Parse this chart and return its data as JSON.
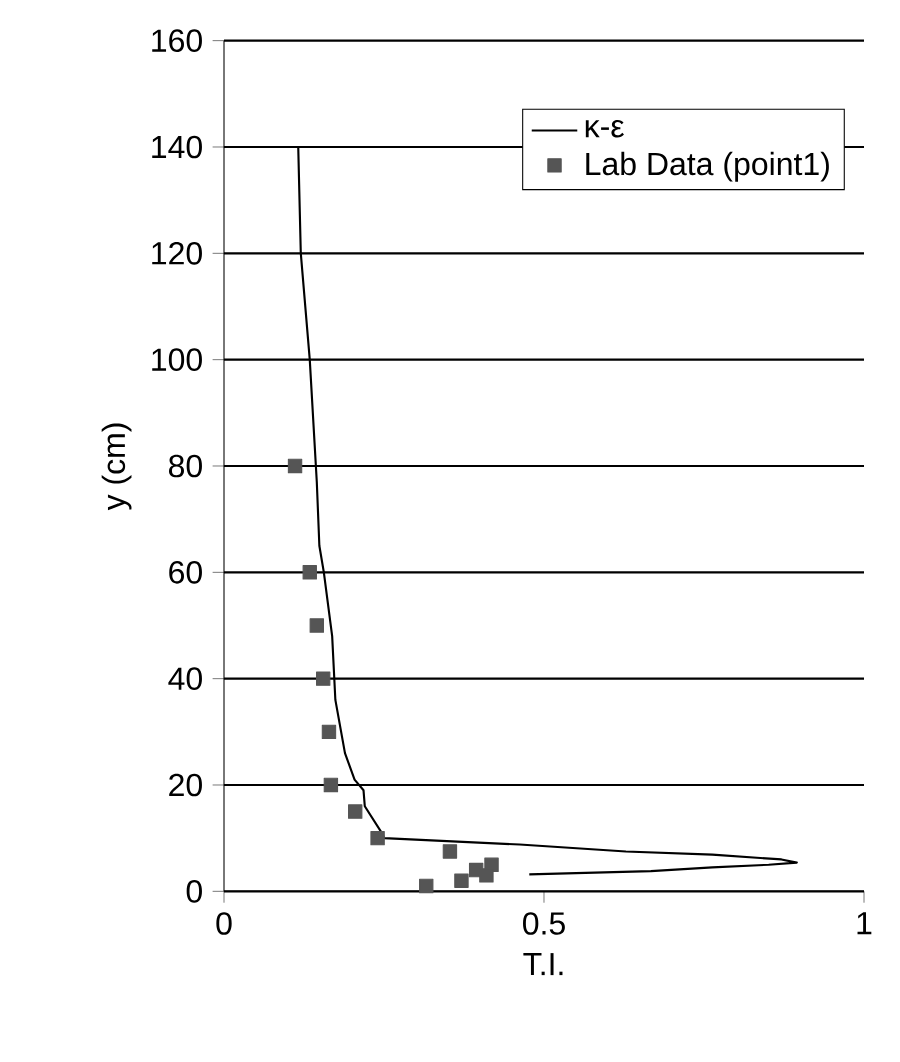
{
  "chart_data": {
    "type": "line",
    "xlabel": "T.I.",
    "ylabel": "y (cm)",
    "xlim": [
      0,
      1
    ],
    "ylim": [
      0,
      160
    ],
    "xticks": [
      0,
      0.5,
      1
    ],
    "yticks": [
      0,
      20,
      40,
      60,
      80,
      100,
      120,
      140,
      160
    ],
    "grid": "y",
    "legend": "top right",
    "series": [
      {
        "name": "κ-ε",
        "color": "#000000",
        "marker": "none",
        "x": [
          0.116,
          0.12,
          0.134,
          0.145,
          0.149,
          0.156,
          0.169,
          0.174,
          0.189,
          0.204,
          0.218,
          0.22,
          0.248,
          0.25,
          0.462,
          0.628,
          0.763,
          0.871,
          0.895,
          0.851,
          0.763,
          0.667,
          0.477
        ],
        "values": [
          140,
          120,
          100,
          77,
          65,
          60,
          48,
          36,
          26,
          21,
          19,
          16,
          10.7,
          10,
          8.8,
          7.5,
          6.9,
          6,
          5.4,
          5,
          4.5,
          3.8,
          3.2
        ]
      },
      {
        "name": "Lab Data (point1)",
        "type": "scatter",
        "color": "#555555",
        "marker": "square",
        "x": [
          0.111,
          0.134,
          0.145,
          0.155,
          0.164,
          0.167,
          0.205,
          0.24,
          0.353,
          0.316,
          0.371,
          0.394,
          0.418,
          0.41
        ],
        "values": [
          80,
          60,
          50,
          40,
          30,
          20,
          15,
          10,
          7.5,
          1,
          2,
          4,
          5,
          3
        ]
      }
    ]
  }
}
